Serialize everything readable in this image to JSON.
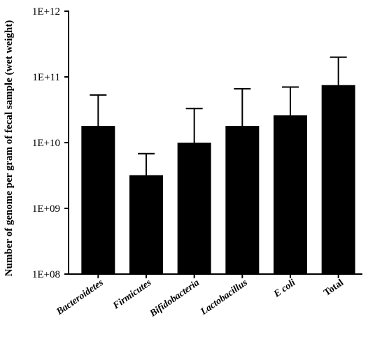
{
  "chart_data": {
    "type": "bar",
    "title": "",
    "ylabel": "Number of genome per gram of fecal sample (wet weight)",
    "xlabel": "",
    "yscale": "log",
    "ylim": [
      100000000.0,
      1000000000000.0
    ],
    "yticks": [
      {
        "value": 100000000.0,
        "label": "1E+08"
      },
      {
        "value": 1000000000.0,
        "label": "1E+09"
      },
      {
        "value": 10000000000.0,
        "label": "1E+10"
      },
      {
        "value": 100000000000.0,
        "label": "1E+11"
      },
      {
        "value": 1000000000000.0,
        "label": "1E+12"
      }
    ],
    "categories": [
      "Bacteroidetes",
      "Firmicutes",
      "Bifidobacteria",
      "Lactobacillus",
      "E coli",
      "Total"
    ],
    "italic_categories": [
      true,
      true,
      true,
      true,
      true,
      false
    ],
    "values": [
      18000000000.0,
      3200000000.0,
      10000000000.0,
      18000000000.0,
      26000000000.0,
      75000000000.0
    ],
    "error_upper": [
      53000000000.0,
      6800000000.0,
      33000000000.0,
      66000000000.0,
      70000000000.0,
      200000000000.0
    ],
    "bar_color": "#000000",
    "grid": false,
    "legend": "none"
  }
}
